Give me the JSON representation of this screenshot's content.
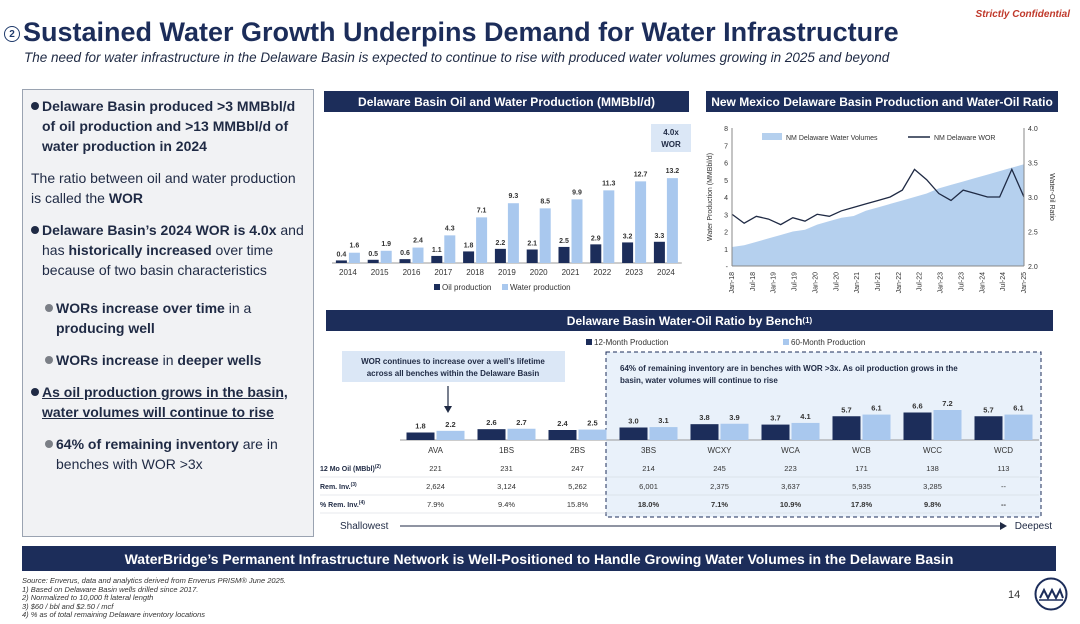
{
  "header": {
    "confidential": "Strictly Confidential",
    "section_number": "2",
    "title": "Sustained Water Growth Underpins Demand for Water Infrastructure",
    "subtitle": "The need for water infrastructure in the Delaware Basin is expected to continue to rise with produced water volumes growing in 2025 and beyond"
  },
  "left_panel": {
    "b1": "Delaware Basin produced >3 MMBbl/d of oil production and >13 MMBbl/d of water production in 2024",
    "ratio_pre": "The ratio between oil and water production is called the ",
    "ratio_bold": "WOR",
    "b2_bold1": "Delaware Basin’s 2024 WOR is 4.0x",
    "b2_mid": " and has ",
    "b2_bold2": "historically increased",
    "b2_post": " over time because of two basin characteristics",
    "s1_bold": "WORs increase over time",
    "s1_mid": " in a ",
    "s1_bold2": "producing well",
    "s2_bold": "WORs increase",
    "s2_mid": " in ",
    "s2_bold2": "deeper wells",
    "b3": "As oil production grows in the basin, water volumes will continue to rise",
    "s3_bold": "64% of remaining inventory",
    "s3_post": " are in benches with WOR >3x"
  },
  "banner": "WaterBridge’s Permanent Infrastructure Network is Well-Positioned to Handle Growing Water Volumes in the Delaware Basin",
  "footnotes": {
    "source": "Source: Enverus, data and analytics derived from Enverus PRISM® June 2025.",
    "n1": "1)   Based on Delaware Basin wells drilled since 2017.",
    "n2": "2)   Normalized to 10,000 ft lateral length",
    "n3": "3)   $60 / bbl and $2.50 / mcf",
    "n4": "4)   % as of total remaining Delaware inventory locations"
  },
  "page_number": "14",
  "colors": {
    "navy": "#1c2d5a",
    "light_blue": "#a9c8ee",
    "area_blue": "#b5d0ee",
    "dark_bar": "#1c2d5a",
    "highlight": "#dbe7f6"
  },
  "chart_data": [
    {
      "type": "bar",
      "title": "Delaware Basin Oil and Water Production (MMBbl/d)",
      "categories": [
        "2014",
        "2015",
        "2016",
        "2017",
        "2018",
        "2019",
        "2020",
        "2021",
        "2022",
        "2023",
        "2024"
      ],
      "series": [
        {
          "name": "Oil production",
          "values": [
            0.4,
            0.5,
            0.6,
            1.1,
            1.8,
            2.2,
            2.1,
            2.5,
            2.9,
            3.2,
            3.3
          ]
        },
        {
          "name": "Water production",
          "values": [
            1.6,
            1.9,
            2.4,
            4.3,
            7.1,
            9.3,
            8.5,
            9.9,
            11.3,
            12.7,
            13.2
          ]
        }
      ],
      "annotation": [
        "4.0x",
        "WOR"
      ],
      "legend": "bottom"
    },
    {
      "type": "area",
      "title": "New Mexico Delaware Basin Production and Water-Oil Ratio",
      "ylabel": "Water Production (MMBbl/d)",
      "y2label": "Water-Oil Ratio",
      "ylim": [
        0,
        8
      ],
      "y2lim": [
        2.0,
        4.0
      ],
      "y_ticks": [
        "-",
        "1",
        "2",
        "3",
        "4",
        "5",
        "6",
        "7",
        "8"
      ],
      "y2_ticks": [
        "2.0",
        "2.5",
        "3.0",
        "3.5",
        "4.0"
      ],
      "x_ticks": [
        "Jan-18",
        "Jul-18",
        "Jan-19",
        "Jul-19",
        "Jan-20",
        "Jul-20",
        "Jan-21",
        "Jul-21",
        "Jan-22",
        "Jul-22",
        "Jan-23",
        "Jul-23",
        "Jan-24",
        "Jul-24",
        "Jan-25"
      ],
      "series": [
        {
          "name": "NM Delaware Water Volumes",
          "axis": "left",
          "type": "area",
          "values": [
            1.1,
            1.2,
            1.4,
            1.6,
            1.8,
            2.0,
            2.1,
            2.4,
            2.6,
            2.8,
            2.9,
            3.2,
            3.4,
            3.6,
            3.8,
            4.0,
            4.2,
            4.5,
            4.7,
            4.9,
            5.1,
            5.3,
            5.5,
            5.7,
            5.9
          ]
        },
        {
          "name": "NM Delaware WOR",
          "axis": "right",
          "type": "line",
          "values": [
            2.75,
            2.62,
            2.72,
            2.68,
            2.6,
            2.7,
            2.65,
            2.75,
            2.72,
            2.8,
            2.85,
            2.9,
            2.95,
            3.0,
            3.1,
            3.4,
            3.25,
            3.05,
            2.95,
            3.1,
            3.05,
            3.0,
            3.0,
            3.4,
            3.0
          ]
        }
      ],
      "legend": "top"
    },
    {
      "type": "bar",
      "title": "Delaware Basin Water-Oil Ratio by Bench",
      "title_sup": "(1)",
      "categories": [
        "AVA",
        "1BS",
        "2BS",
        "3BS",
        "WCXY",
        "WCA",
        "WCB",
        "WCC",
        "WCD"
      ],
      "series": [
        {
          "name": "12-Month Production",
          "values": [
            1.8,
            2.6,
            2.4,
            3.0,
            3.8,
            3.7,
            5.7,
            6.6,
            5.7
          ]
        },
        {
          "name": "60-Month Production",
          "values": [
            2.2,
            2.7,
            2.5,
            3.1,
            3.9,
            4.1,
            6.1,
            7.2,
            6.1
          ]
        }
      ],
      "legend": "top",
      "callout_left": "WOR continues to increase over a well’s lifetime across all benches within the Delaware Basin",
      "callout_right": "64% of remaining inventory are in benches with WOR >3x. As oil production grows in the basin, water volumes will continue to rise",
      "table": {
        "row_labels": [
          "12 Mo Oil (MBbl)",
          "Rem. Inv.",
          "% Rem. Inv."
        ],
        "row_sups": [
          "(2)",
          "(3)",
          "(4)"
        ],
        "rows": [
          [
            "221",
            "231",
            "247",
            "214",
            "245",
            "223",
            "171",
            "138",
            "113"
          ],
          [
            "2,624",
            "3,124",
            "5,262",
            "6,001",
            "2,375",
            "3,637",
            "5,935",
            "3,285",
            "--"
          ],
          [
            "7.9%",
            "9.4%",
            "15.8%",
            "18.0%",
            "7.1%",
            "10.9%",
            "17.8%",
            "9.8%",
            "--"
          ]
        ]
      },
      "axis_left": "Shallowest",
      "axis_right": "Deepest"
    }
  ]
}
